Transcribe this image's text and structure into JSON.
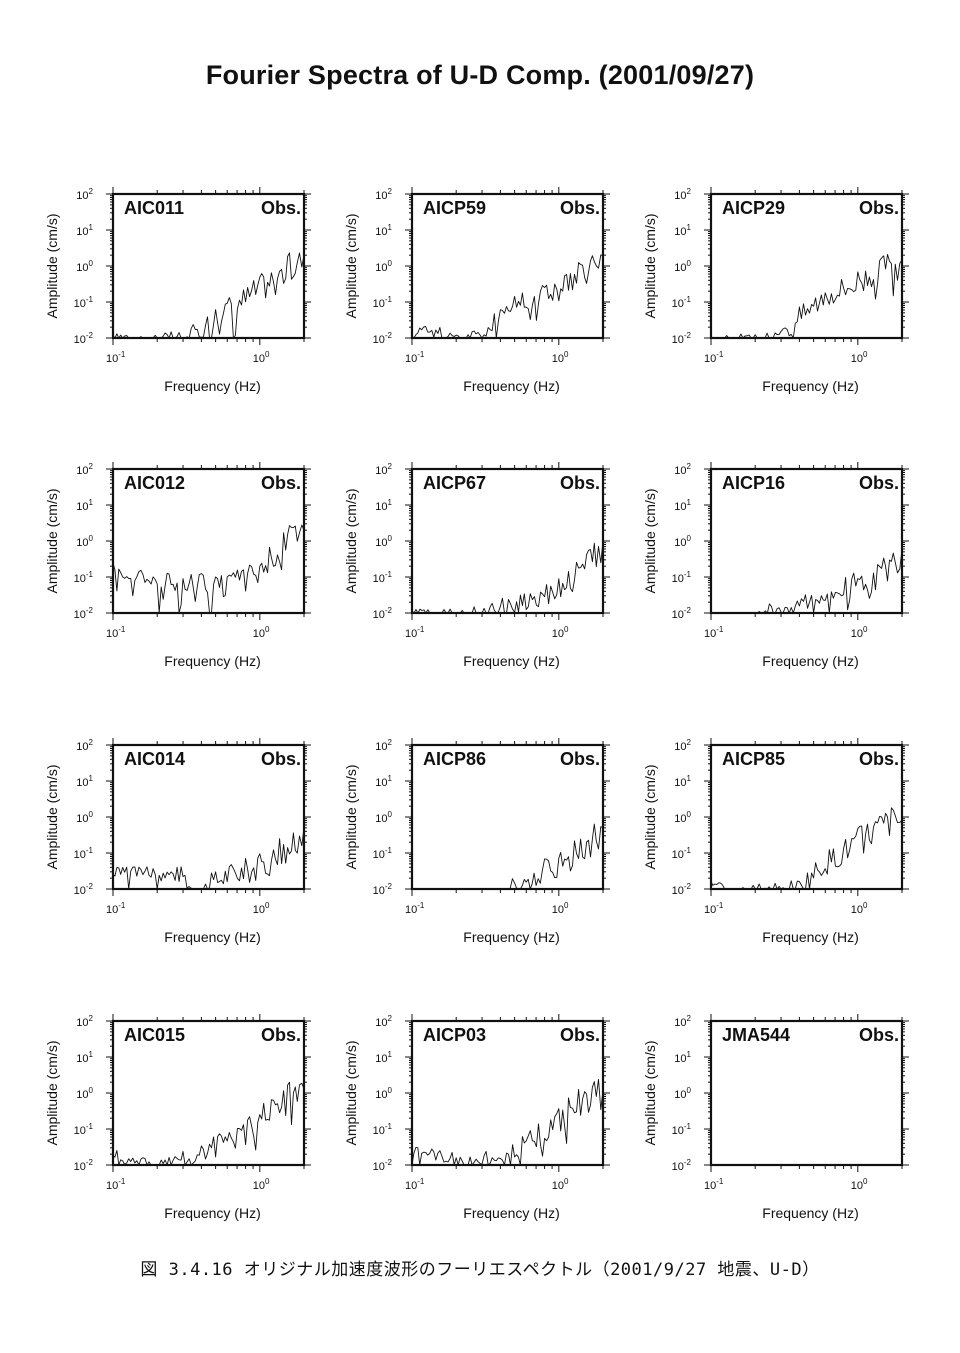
{
  "page": {
    "title": "Fourier Spectra of U-D Comp. (2001/09/27)",
    "caption": "図 3.4.16 オリジナル加速度波形のフーリエスペクトル（2001/9/27 地震、U-D）"
  },
  "axes_common": {
    "xlabel": "Frequency (Hz)",
    "ylabel": "Amplitude (cm/s)",
    "x_scale": "log",
    "y_scale": "log",
    "xlim": [
      0.1,
      2.0
    ],
    "ylim": [
      0.01,
      100
    ],
    "x_tick_labels": [
      {
        "base": "10",
        "exp": "-1",
        "value": 0.1
      },
      {
        "base": "10",
        "exp": "0",
        "value": 1
      }
    ],
    "y_tick_labels": [
      {
        "base": "10",
        "exp": "2",
        "value": 100
      },
      {
        "base": "10",
        "exp": "1",
        "value": 10
      },
      {
        "base": "10",
        "exp": "0",
        "value": 1
      },
      {
        "base": "10",
        "exp": "-1",
        "value": 0.1
      },
      {
        "base": "10",
        "exp": "-2",
        "value": 0.01
      }
    ],
    "obs_label": "Obs.",
    "line_color": "#111111"
  },
  "chart_data": [
    {
      "type": "line",
      "title": "AIC011",
      "x": [
        0.1,
        0.12,
        0.15,
        0.2,
        0.3,
        0.4,
        0.5,
        0.6,
        0.8,
        1.0,
        1.2,
        1.5,
        1.8,
        2.0
      ],
      "y": [
        0.01,
        0.013,
        0.01,
        0.01,
        0.01,
        0.02,
        0.05,
        0.08,
        0.15,
        0.3,
        0.5,
        0.9,
        1.4,
        2.0
      ]
    },
    {
      "type": "line",
      "title": "AICP59",
      "x": [
        0.1,
        0.12,
        0.15,
        0.2,
        0.3,
        0.4,
        0.5,
        0.6,
        0.8,
        1.0,
        1.2,
        1.5,
        1.8,
        2.0
      ],
      "y": [
        0.015,
        0.02,
        0.015,
        0.013,
        0.012,
        0.06,
        0.1,
        0.15,
        0.2,
        0.3,
        0.4,
        0.8,
        1.5,
        2.0
      ]
    },
    {
      "type": "line",
      "title": "AICP29",
      "x": [
        0.1,
        0.12,
        0.15,
        0.2,
        0.3,
        0.4,
        0.5,
        0.6,
        0.8,
        1.0,
        1.2,
        1.5,
        1.8,
        2.0
      ],
      "y": [
        0.01,
        0.01,
        0.01,
        0.01,
        0.012,
        0.05,
        0.1,
        0.2,
        0.3,
        0.5,
        0.7,
        1.0,
        1.2,
        1.5
      ]
    },
    {
      "type": "line",
      "title": "AIC012",
      "x": [
        0.1,
        0.12,
        0.15,
        0.2,
        0.3,
        0.4,
        0.5,
        0.6,
        0.8,
        1.0,
        1.2,
        1.5,
        1.8,
        2.0
      ],
      "y": [
        0.25,
        0.1,
        0.12,
        0.1,
        0.07,
        0.08,
        0.06,
        0.07,
        0.1,
        0.2,
        0.5,
        1.0,
        1.8,
        2.0
      ]
    },
    {
      "type": "line",
      "title": "AICP67",
      "x": [
        0.1,
        0.15,
        0.2,
        0.3,
        0.4,
        0.5,
        0.6,
        0.8,
        1.0,
        1.2,
        1.5,
        1.8,
        2.0
      ],
      "y": [
        0.01,
        0.01,
        0.01,
        0.011,
        0.015,
        0.02,
        0.025,
        0.04,
        0.06,
        0.1,
        0.2,
        0.5,
        1.0
      ]
    },
    {
      "type": "line",
      "title": "AICP16",
      "x": [
        0.2,
        0.25,
        0.3,
        0.4,
        0.5,
        0.6,
        0.8,
        1.0,
        1.2,
        1.5,
        1.8,
        2.0
      ],
      "y": [
        0.011,
        0.012,
        0.015,
        0.02,
        0.025,
        0.03,
        0.05,
        0.08,
        0.1,
        0.15,
        0.3,
        0.6
      ]
    },
    {
      "type": "line",
      "title": "AIC014",
      "x": [
        0.1,
        0.12,
        0.15,
        0.2,
        0.3,
        0.35,
        0.4,
        0.5,
        0.6,
        0.8,
        1.0,
        1.2,
        1.5,
        1.8,
        2.0
      ],
      "y": [
        0.03,
        0.04,
        0.03,
        0.03,
        0.03,
        0.01,
        0.01,
        0.02,
        0.03,
        0.04,
        0.05,
        0.08,
        0.15,
        0.2,
        0.5
      ]
    },
    {
      "type": "line",
      "title": "AICP86",
      "x": [
        0.45,
        0.5,
        0.6,
        0.7,
        0.8,
        1.0,
        1.2,
        1.5,
        1.8,
        2.0
      ],
      "y": [
        0.01,
        0.015,
        0.02,
        0.03,
        0.04,
        0.05,
        0.1,
        0.2,
        0.3,
        0.5
      ]
    },
    {
      "type": "line",
      "title": "AICP85",
      "x": [
        0.1,
        0.12,
        0.15,
        0.2,
        0.3,
        0.4,
        0.5,
        0.6,
        0.8,
        1.0,
        1.2,
        1.5,
        1.8,
        2.0
      ],
      "y": [
        0.015,
        0.012,
        0.01,
        0.01,
        0.01,
        0.012,
        0.03,
        0.06,
        0.12,
        0.25,
        0.4,
        0.7,
        1.0,
        0.8
      ]
    },
    {
      "type": "line",
      "title": "AIC015",
      "x": [
        0.1,
        0.12,
        0.15,
        0.2,
        0.3,
        0.4,
        0.5,
        0.6,
        0.8,
        1.0,
        1.2,
        1.5,
        1.8,
        2.0
      ],
      "y": [
        0.025,
        0.015,
        0.012,
        0.01,
        0.015,
        0.02,
        0.04,
        0.06,
        0.1,
        0.2,
        0.4,
        0.8,
        1.2,
        1.3
      ]
    },
    {
      "type": "line",
      "title": "AICP03",
      "x": [
        0.1,
        0.12,
        0.15,
        0.2,
        0.3,
        0.4,
        0.5,
        0.6,
        0.8,
        1.0,
        1.2,
        1.5,
        1.8,
        2.0
      ],
      "y": [
        0.03,
        0.025,
        0.02,
        0.015,
        0.015,
        0.02,
        0.03,
        0.05,
        0.1,
        0.2,
        0.4,
        0.8,
        1.0,
        1.2
      ]
    },
    {
      "type": "line",
      "title": "JMA544",
      "x": [],
      "y": []
    }
  ]
}
